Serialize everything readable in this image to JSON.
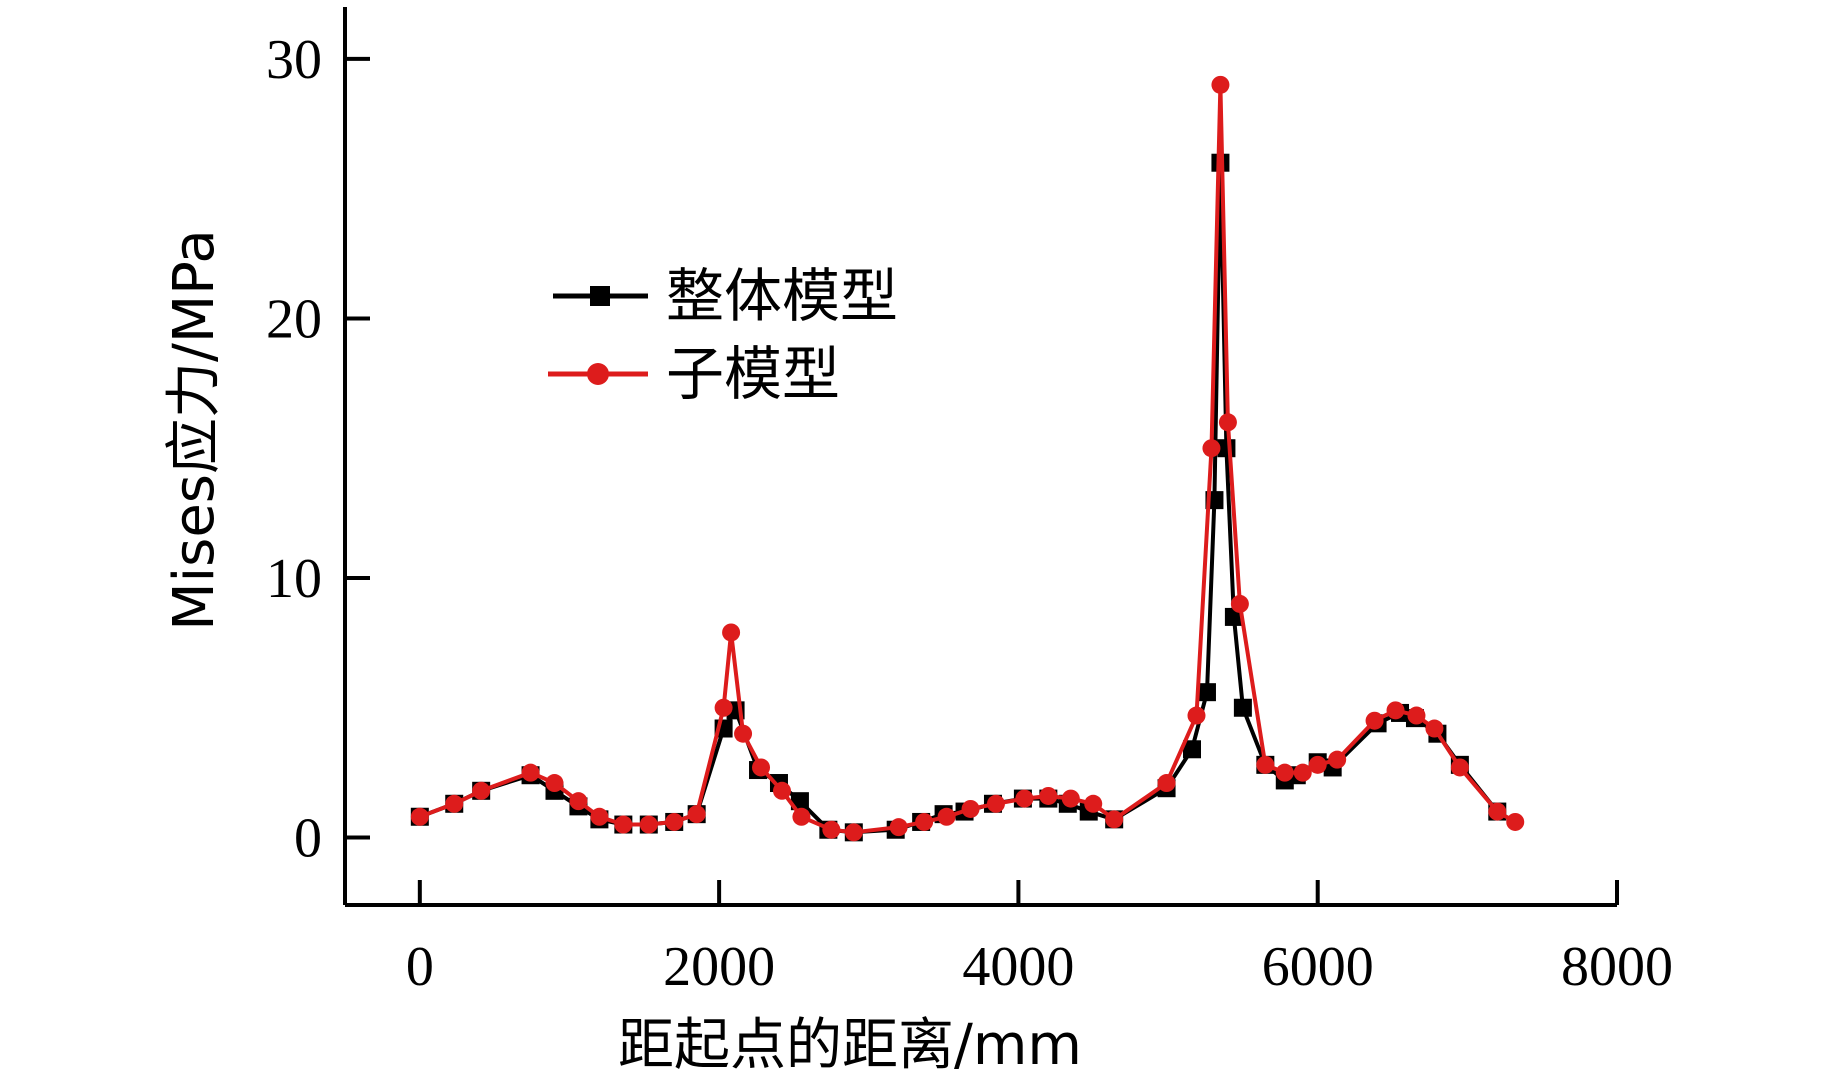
{
  "chart_data": {
    "type": "line",
    "xlabel": "距起点的距离/mm",
    "ylabel": "Mises应力/MPa",
    "xlim": [
      -500,
      8000
    ],
    "ylim": [
      -2.6,
      32
    ],
    "xticks": [
      "0",
      "2000",
      "4000",
      "6000",
      "8000"
    ],
    "xtick_values": [
      0,
      2000,
      4000,
      6000,
      8000
    ],
    "yticks": [
      "0",
      "10",
      "20",
      "30"
    ],
    "ytick_values": [
      0,
      10,
      20,
      30
    ],
    "legend_position": "upper-left",
    "grid": false,
    "series": [
      {
        "name": "整体模型",
        "color": "#000000",
        "marker": "square",
        "x": [
          0,
          230,
          410,
          740,
          900,
          1060,
          1200,
          1360,
          1530,
          1700,
          1850,
          2030,
          2110,
          2260,
          2400,
          2540,
          2730,
          2900,
          3180,
          3350,
          3500,
          3640,
          3830,
          4030,
          4200,
          4330,
          4470,
          4640,
          4990,
          5160,
          5260,
          5310,
          5350,
          5390,
          5440,
          5500,
          5650,
          5780,
          5860,
          6000,
          6100,
          6400,
          6550,
          6650,
          6800,
          6950,
          7200
        ],
        "y": [
          0.8,
          1.3,
          1.8,
          2.4,
          1.8,
          1.2,
          0.7,
          0.5,
          0.5,
          0.6,
          0.9,
          4.2,
          4.9,
          2.6,
          2.1,
          1.4,
          0.3,
          0.2,
          0.3,
          0.6,
          0.9,
          1.0,
          1.3,
          1.5,
          1.5,
          1.3,
          1.0,
          0.7,
          1.9,
          3.4,
          5.6,
          13.0,
          26.0,
          15.0,
          8.5,
          5.0,
          2.8,
          2.2,
          2.4,
          2.9,
          2.7,
          4.4,
          4.8,
          4.6,
          4.0,
          2.8,
          1.0
        ]
      },
      {
        "name": "子模型",
        "color": "#dd1c1c",
        "marker": "circle",
        "x": [
          0,
          230,
          410,
          740,
          900,
          1060,
          1200,
          1360,
          1530,
          1700,
          1850,
          2030,
          2080,
          2160,
          2280,
          2420,
          2550,
          2750,
          2900,
          3200,
          3370,
          3520,
          3680,
          3850,
          4040,
          4200,
          4350,
          4500,
          4640,
          4990,
          5190,
          5290,
          5350,
          5400,
          5480,
          5650,
          5780,
          5900,
          6000,
          6130,
          6380,
          6520,
          6660,
          6780,
          6950,
          7200,
          7320
        ],
        "y": [
          0.8,
          1.3,
          1.8,
          2.5,
          2.1,
          1.4,
          0.8,
          0.5,
          0.5,
          0.6,
          0.9,
          5.0,
          7.9,
          4.0,
          2.7,
          1.8,
          0.8,
          0.3,
          0.2,
          0.4,
          0.6,
          0.8,
          1.1,
          1.3,
          1.5,
          1.6,
          1.5,
          1.3,
          0.7,
          2.1,
          4.7,
          15.0,
          29.0,
          16.0,
          9.0,
          2.8,
          2.5,
          2.5,
          2.8,
          3.0,
          4.5,
          4.9,
          4.7,
          4.2,
          2.7,
          1.0,
          0.6
        ]
      }
    ]
  }
}
